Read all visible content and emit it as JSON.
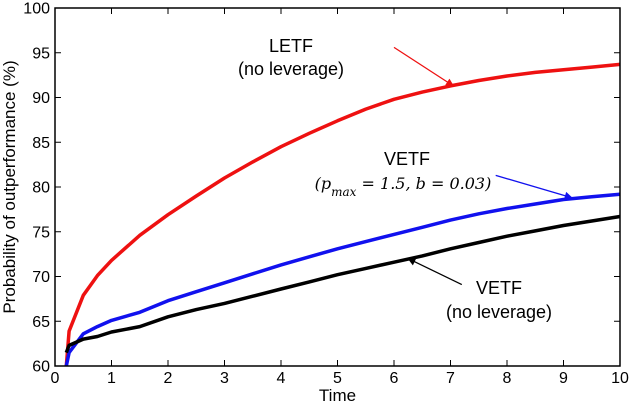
{
  "chart_data": {
    "type": "line",
    "title": "",
    "xlabel": "Time",
    "ylabel": "Probability of outperformance (%)",
    "xlim": [
      0,
      10
    ],
    "ylim": [
      60,
      100
    ],
    "xticks": [
      "0",
      "1",
      "2",
      "3",
      "4",
      "5",
      "6",
      "7",
      "8",
      "9",
      "10"
    ],
    "yticks": [
      "60",
      "65",
      "70",
      "75",
      "80",
      "85",
      "90",
      "95",
      "100"
    ],
    "grid": false,
    "legend": "none",
    "series": [
      {
        "id": "letf",
        "color": "#ee1111",
        "x": [
          0.2,
          0.25,
          0.5,
          0.75,
          1.0,
          1.5,
          2.0,
          2.5,
          3.0,
          3.5,
          4.0,
          4.5,
          5.0,
          5.5,
          6.0,
          6.5,
          7.0,
          7.5,
          8.0,
          8.5,
          9.0,
          9.5,
          10.0
        ],
        "values": [
          60,
          63.9,
          67.9,
          70.1,
          71.8,
          74.6,
          76.9,
          79.0,
          81.0,
          82.8,
          84.5,
          86.0,
          87.4,
          88.7,
          89.8,
          90.6,
          91.3,
          91.9,
          92.4,
          92.8,
          93.1,
          93.4,
          93.7
        ]
      },
      {
        "id": "vetf",
        "color": "#1111ee",
        "x": [
          0.2,
          0.25,
          0.5,
          0.75,
          1.0,
          1.5,
          2.0,
          2.5,
          3.0,
          3.5,
          4.0,
          4.5,
          5.0,
          5.5,
          6.0,
          6.5,
          7.0,
          7.5,
          8.0,
          8.5,
          9.0,
          9.5,
          10.0
        ],
        "values": [
          60,
          61.5,
          63.6,
          64.4,
          65.1,
          66.0,
          67.3,
          68.3,
          69.3,
          70.3,
          71.3,
          72.2,
          73.1,
          73.9,
          74.7,
          75.5,
          76.3,
          77.0,
          77.6,
          78.1,
          78.6,
          78.9,
          79.2
        ]
      },
      {
        "id": "etf",
        "color": "#000000",
        "x": [
          0.2,
          0.25,
          0.5,
          0.75,
          1.0,
          1.5,
          2.0,
          2.5,
          3.0,
          3.5,
          4.0,
          4.5,
          5.0,
          5.5,
          6.0,
          6.5,
          7.0,
          7.5,
          8.0,
          8.5,
          9.0,
          9.5,
          10.0
        ],
        "values": [
          61.5,
          62.3,
          63.0,
          63.3,
          63.8,
          64.4,
          65.5,
          66.3,
          67.0,
          67.8,
          68.6,
          69.4,
          70.2,
          70.9,
          71.6,
          72.3,
          73.1,
          73.8,
          74.5,
          75.1,
          75.7,
          76.2,
          76.7
        ]
      }
    ],
    "annotations": [
      {
        "id": "letf",
        "line1": "LETF",
        "line2": "(no leverage)",
        "color": "#ee1111",
        "arrow_from": [
          6.0,
          95.6
        ],
        "arrow_to": [
          7.05,
          91.3
        ]
      },
      {
        "id": "vetf",
        "line1": "VETF",
        "line2": "(p_max = 1.5, b = 0.03)",
        "color": "#1111ee",
        "arrow_from": [
          7.8,
          81.3
        ],
        "arrow_to": [
          9.15,
          78.8
        ]
      },
      {
        "id": "etf",
        "line1": "VETF",
        "line2": "(no leverage)",
        "color": "#000000",
        "arrow_from": [
          7.2,
          69.1
        ],
        "arrow_to": [
          6.25,
          72.0
        ]
      }
    ]
  }
}
